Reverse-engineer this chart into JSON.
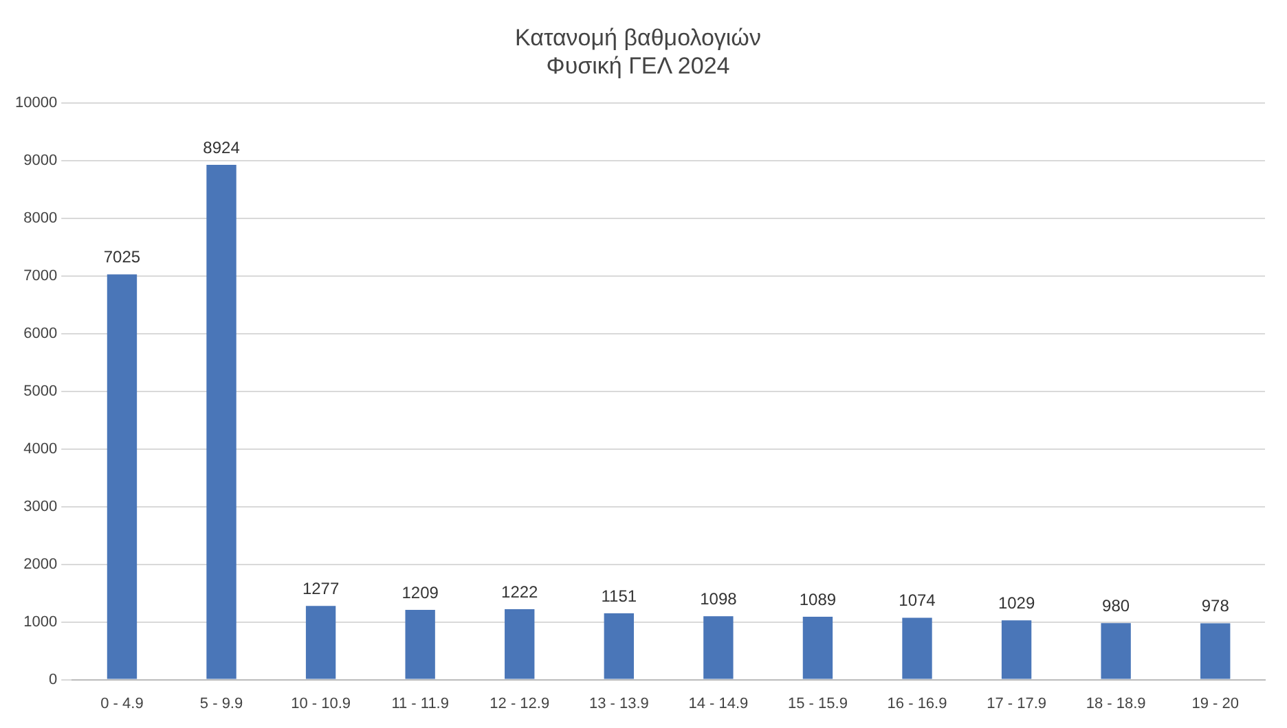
{
  "chart_data": {
    "type": "bar",
    "title": "Κατανομή βαθμολογιών",
    "subtitle": "Φυσική ΓΕΛ 2024",
    "categories": [
      "0 - 4.9",
      "5 - 9.9",
      "10 - 10.9",
      "11 - 11.9",
      "12 - 12.9",
      "13 - 13.9",
      "14 - 14.9",
      "15 - 15.9",
      "16 - 16.9",
      "17 - 17.9",
      "18 - 18.9",
      "19 - 20"
    ],
    "values": [
      7025,
      8924,
      1277,
      1209,
      1222,
      1151,
      1098,
      1089,
      1074,
      1029,
      980,
      978
    ],
    "color": "#4a76b8",
    "ylim": [
      0,
      10000
    ],
    "yticks": [
      0,
      1000,
      2000,
      3000,
      4000,
      5000,
      6000,
      7000,
      8000,
      9000,
      10000
    ],
    "grid": "y",
    "legend": false,
    "data_labels": true
  }
}
